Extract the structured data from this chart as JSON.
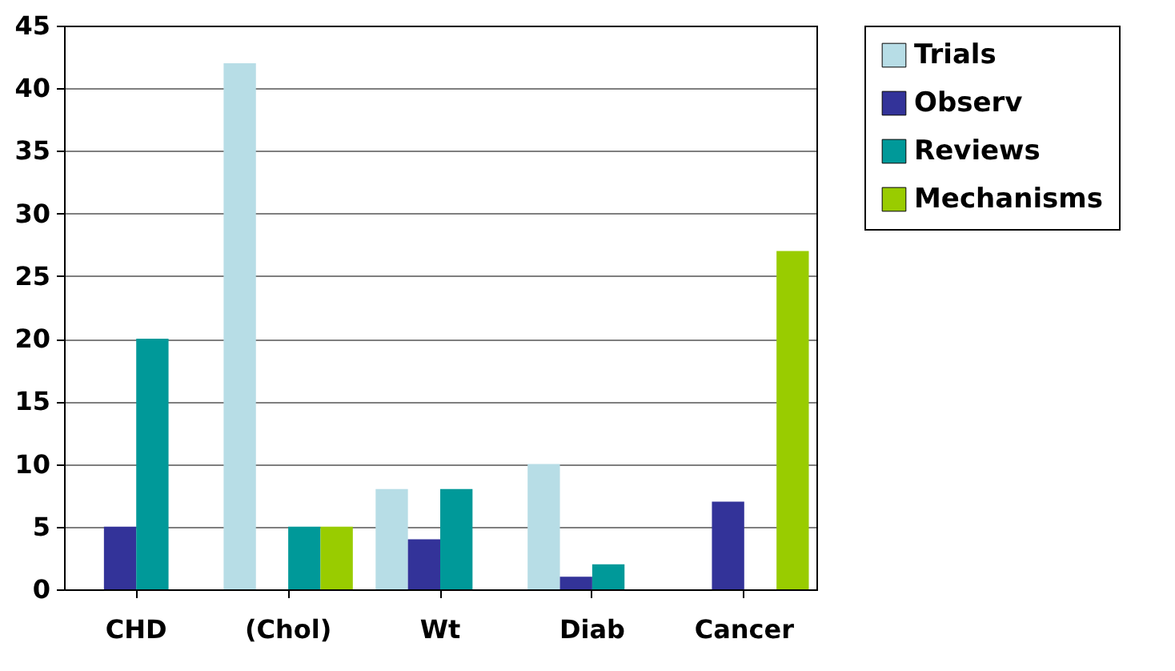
{
  "chart_data": {
    "type": "bar",
    "categories": [
      "CHD",
      "(Chol)",
      "Wt",
      "Diab",
      "Cancer"
    ],
    "series": [
      {
        "name": "Trials",
        "color": "#b7dde6",
        "values": [
          0,
          42,
          8,
          10,
          0
        ]
      },
      {
        "name": "Observ",
        "color": "#333399",
        "values": [
          5,
          0,
          4,
          1,
          7
        ]
      },
      {
        "name": "Reviews",
        "color": "#009999",
        "values": [
          20,
          5,
          8,
          2,
          0
        ]
      },
      {
        "name": "Mechanisms",
        "color": "#99cc00",
        "values": [
          0,
          5,
          0,
          0,
          27
        ]
      }
    ],
    "ylim": [
      0,
      45
    ],
    "yticks": [
      0,
      5,
      10,
      15,
      20,
      25,
      30,
      35,
      40,
      45
    ],
    "grid": "y",
    "legend": "right"
  }
}
